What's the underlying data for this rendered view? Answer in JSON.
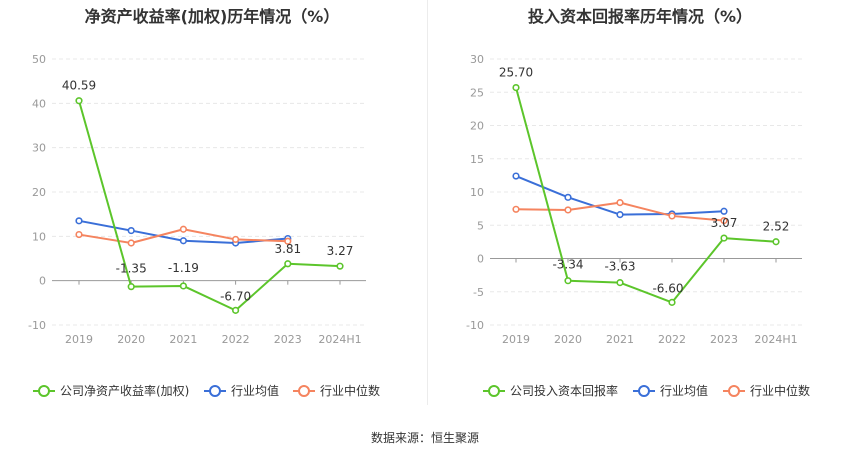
{
  "source_note": "数据来源：恒生聚源",
  "chart_data": [
    {
      "type": "line",
      "title": "净资产收益率(加权)历年情况（%）",
      "categories": [
        "2019",
        "2020",
        "2021",
        "2022",
        "2023",
        "2024H1"
      ],
      "ylim": [
        -10,
        50
      ],
      "yticks": [
        "50",
        "40",
        "30",
        "20",
        "10",
        "0",
        "-10"
      ],
      "grid": true,
      "legend_position": "bottom",
      "series": [
        {
          "name": "公司净资产收益率(加权)",
          "color": "#5cc52b",
          "values": [
            40.59,
            -1.35,
            -1.19,
            -6.7,
            3.81,
            3.27
          ],
          "labels": [
            "40.59",
            "-1.35",
            "-1.19",
            "-6.70",
            "3.81",
            "3.27"
          ]
        },
        {
          "name": "行业均值",
          "color": "#3a6fd8",
          "values": [
            13.5,
            11.3,
            9.0,
            8.5,
            9.5,
            null
          ]
        },
        {
          "name": "行业中位数",
          "color": "#f5845f",
          "values": [
            10.4,
            8.5,
            11.6,
            9.3,
            8.9,
            null
          ]
        }
      ]
    },
    {
      "type": "line",
      "title": "投入资本回报率历年情况（%）",
      "categories": [
        "2019",
        "2020",
        "2021",
        "2022",
        "2023",
        "2024H1"
      ],
      "ylim": [
        -10,
        30
      ],
      "yticks": [
        "30",
        "25",
        "20",
        "15",
        "10",
        "5",
        "0",
        "-5",
        "-10"
      ],
      "grid": true,
      "legend_position": "bottom",
      "series": [
        {
          "name": "公司投入资本回报率",
          "color": "#5cc52b",
          "values": [
            25.7,
            -3.34,
            -3.63,
            -6.6,
            3.07,
            2.52
          ],
          "labels": [
            "25.70",
            "-3.34",
            "-3.63",
            "-6.60",
            "3.07",
            "2.52"
          ]
        },
        {
          "name": "行业均值",
          "color": "#3a6fd8",
          "values": [
            12.4,
            9.2,
            6.6,
            6.7,
            7.1,
            null
          ]
        },
        {
          "name": "行业中位数",
          "color": "#f5845f",
          "values": [
            7.4,
            7.3,
            8.4,
            6.4,
            5.7,
            null
          ]
        }
      ]
    }
  ]
}
